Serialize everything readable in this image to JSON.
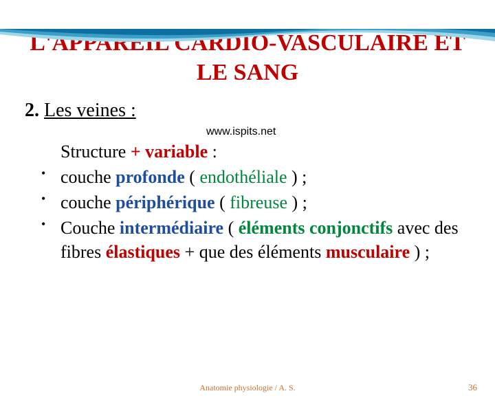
{
  "decoration": {
    "wave_colors": [
      "#9ed6e8",
      "#3aa0c9",
      "#0f6fa3"
    ]
  },
  "title": "L'APPAREIL  CARDIO-VASCULAIRE  ET  LE  SANG",
  "section": {
    "number": "2.",
    "heading": "Les veines :"
  },
  "url_note": "www.ispits.net",
  "intro": {
    "prefix": "Structure  ",
    "variable": "+ variable",
    "suffix": " :"
  },
  "bullets": [
    {
      "parts": [
        {
          "text": "couche ",
          "cls": ""
        },
        {
          "text": "profonde",
          "cls": "blue bold"
        },
        {
          "text": " ( ",
          "cls": ""
        },
        {
          "text": "endothéliale",
          "cls": "green"
        },
        {
          "text": " ) ;",
          "cls": ""
        }
      ]
    },
    {
      "parts": [
        {
          "text": "couche ",
          "cls": ""
        },
        {
          "text": "périphérique",
          "cls": "blue bold"
        },
        {
          "text": " ( ",
          "cls": ""
        },
        {
          "text": "fibreuse",
          "cls": "green"
        },
        {
          "text": " ) ;",
          "cls": ""
        }
      ]
    },
    {
      "parts": [
        {
          "text": "Couche ",
          "cls": ""
        },
        {
          "text": "intermédiaire",
          "cls": "blue bold"
        },
        {
          "text": " ( ",
          "cls": ""
        },
        {
          "text": "éléments conjonctifs",
          "cls": "green bold"
        },
        {
          "text": " avec des fibres ",
          "cls": ""
        },
        {
          "text": "élastiques",
          "cls": "red bold"
        },
        {
          "text": " + que des éléments ",
          "cls": ""
        },
        {
          "text": "musculaire",
          "cls": "red bold"
        },
        {
          "text": " ) ;",
          "cls": ""
        }
      ]
    }
  ],
  "footer": "Anatomie physiologie /  A. S.",
  "page_number": "36"
}
